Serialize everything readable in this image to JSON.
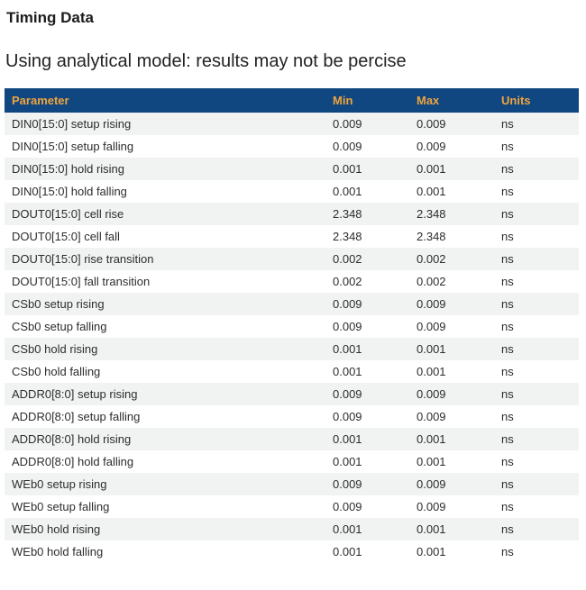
{
  "page": {
    "title": "Timing Data",
    "subtitle": "Using analytical model: results may not be percise"
  },
  "table": {
    "columns": [
      "Parameter",
      "Min",
      "Max",
      "Units"
    ],
    "rows": [
      {
        "parameter": "DIN0[15:0] setup rising",
        "min": "0.009",
        "max": "0.009",
        "units": "ns"
      },
      {
        "parameter": "DIN0[15:0] setup falling",
        "min": "0.009",
        "max": "0.009",
        "units": "ns"
      },
      {
        "parameter": "DIN0[15:0] hold rising",
        "min": "0.001",
        "max": "0.001",
        "units": "ns"
      },
      {
        "parameter": "DIN0[15:0] hold falling",
        "min": "0.001",
        "max": "0.001",
        "units": "ns"
      },
      {
        "parameter": "DOUT0[15:0] cell rise",
        "min": "2.348",
        "max": "2.348",
        "units": "ns"
      },
      {
        "parameter": "DOUT0[15:0] cell fall",
        "min": "2.348",
        "max": "2.348",
        "units": "ns"
      },
      {
        "parameter": "DOUT0[15:0] rise transition",
        "min": "0.002",
        "max": "0.002",
        "units": "ns"
      },
      {
        "parameter": "DOUT0[15:0] fall transition",
        "min": "0.002",
        "max": "0.002",
        "units": "ns"
      },
      {
        "parameter": "CSb0 setup rising",
        "min": "0.009",
        "max": "0.009",
        "units": "ns"
      },
      {
        "parameter": "CSb0 setup falling",
        "min": "0.009",
        "max": "0.009",
        "units": "ns"
      },
      {
        "parameter": "CSb0 hold rising",
        "min": "0.001",
        "max": "0.001",
        "units": "ns"
      },
      {
        "parameter": "CSb0 hold falling",
        "min": "0.001",
        "max": "0.001",
        "units": "ns"
      },
      {
        "parameter": "ADDR0[8:0] setup rising",
        "min": "0.009",
        "max": "0.009",
        "units": "ns"
      },
      {
        "parameter": "ADDR0[8:0] setup falling",
        "min": "0.009",
        "max": "0.009",
        "units": "ns"
      },
      {
        "parameter": "ADDR0[8:0] hold rising",
        "min": "0.001",
        "max": "0.001",
        "units": "ns"
      },
      {
        "parameter": "ADDR0[8:0] hold falling",
        "min": "0.001",
        "max": "0.001",
        "units": "ns"
      },
      {
        "parameter": "WEb0 setup rising",
        "min": "0.009",
        "max": "0.009",
        "units": "ns"
      },
      {
        "parameter": "WEb0 setup falling",
        "min": "0.009",
        "max": "0.009",
        "units": "ns"
      },
      {
        "parameter": "WEb0 hold rising",
        "min": "0.001",
        "max": "0.001",
        "units": "ns"
      },
      {
        "parameter": "WEb0 hold falling",
        "min": "0.001",
        "max": "0.001",
        "units": "ns"
      }
    ]
  },
  "colors": {
    "header_bg": "#104780",
    "header_text": "#f0a43e",
    "row_alt_bg": "#f1f2f2"
  }
}
